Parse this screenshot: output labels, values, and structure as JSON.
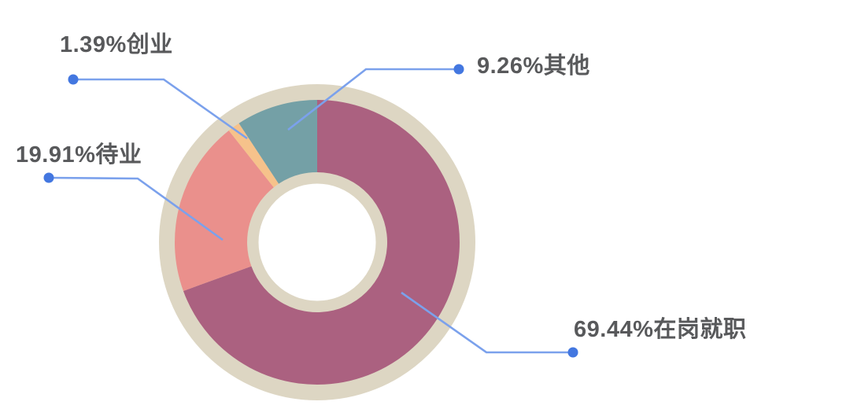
{
  "page": {
    "background_color": "#ffffff",
    "description_labels": {
      "zaigang": "69.44%在岗就职",
      "daiye": "19.91%待业",
      "chuangye": "1.39%创业",
      "qita": "9.26%其他"
    }
  },
  "chart_data": {
    "type": "pie",
    "subtype": "donut",
    "title": "",
    "start_angle_deg_from_top": 0,
    "direction": "clockwise",
    "slices": [
      {
        "name": "在岗就职",
        "value_pct": 69.44,
        "label": "69.44%在岗就职",
        "color": "#ab6180"
      },
      {
        "name": "待业",
        "value_pct": 19.91,
        "label": "19.91%待业",
        "color": "#ea908c"
      },
      {
        "name": "创业",
        "value_pct": 1.39,
        "label": "1.39%创业",
        "color": "#f6c28b"
      },
      {
        "name": "其他",
        "value_pct": 9.26,
        "label": "9.26%其他",
        "color": "#74a0a6"
      }
    ],
    "ring_color": "#ddd6c3",
    "hole_color": "#ffffff",
    "callout_line_color": "#7ba1ec",
    "callout_dot_color": "#4377e0",
    "label_text_color": "#58595b",
    "legend_position": "none",
    "grid": false
  }
}
